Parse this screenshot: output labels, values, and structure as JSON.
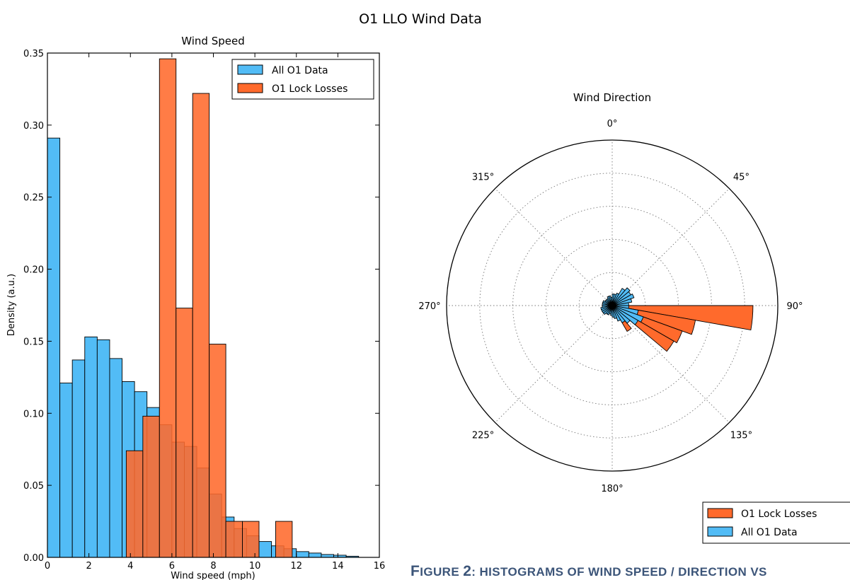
{
  "figure": {
    "suptitle": "O1 LLO Wind Data",
    "caption_first": "F",
    "caption_word": "IGURE",
    "caption_num": "2",
    "caption_rest": ": HISTOGRAMS OF WIND SPEED / DIRECTION VS"
  },
  "colors": {
    "all": "#52bcf6",
    "lock": "#ff6a2c"
  },
  "chart_data": [
    {
      "type": "bar",
      "title": "Wind Speed",
      "xlabel": "Wind speed (mph)",
      "ylabel": "Density (a.u.)",
      "xlim": [
        0,
        16
      ],
      "ylim": [
        0,
        0.35
      ],
      "xticks": [
        "0",
        "2",
        "4",
        "6",
        "8",
        "10",
        "12",
        "14",
        "16"
      ],
      "yticks": [
        "0.00",
        "0.05",
        "0.10",
        "0.15",
        "0.20",
        "0.25",
        "0.30",
        "0.35"
      ],
      "legend_position": "top-right",
      "series": [
        {
          "name": "All O1 Data",
          "color": "#52bcf6",
          "bin_start": 0,
          "bin_width": 0.6,
          "values": [
            0.291,
            0.121,
            0.137,
            0.153,
            0.151,
            0.138,
            0.122,
            0.115,
            0.104,
            0.092,
            0.08,
            0.077,
            0.062,
            0.044,
            0.028,
            0.02,
            0.015,
            0.011,
            0.008,
            0.006,
            0.004,
            0.003,
            0.002,
            0.0015,
            0.0008
          ]
        },
        {
          "name": "O1 Lock Losses",
          "color": "#ff6a2c",
          "bin_start": 3.8,
          "bin_width": 0.8,
          "values": [
            0.074,
            0.098,
            0.346,
            0.173,
            0.322,
            0.148,
            0.025,
            0.025,
            0.0,
            0.025
          ]
        }
      ]
    },
    {
      "type": "polar-bar",
      "title": "Wind Direction",
      "angle_labels": [
        "0°",
        "45°",
        "90°",
        "135°",
        "180°",
        "225°",
        "270°",
        "315°"
      ],
      "direction": "clockwise, 0° at top",
      "bin_width_deg": 10,
      "legend_position": "bottom-right",
      "series": [
        {
          "name": "O1 Lock Losses",
          "color": "#ff6a2c",
          "centers_deg": [
            95,
            105,
            115,
            125,
            135,
            145,
            155,
            165,
            175,
            185,
            195,
            205,
            215,
            225,
            235,
            245,
            255,
            265,
            275,
            285,
            295,
            305,
            315,
            325,
            335,
            345,
            355
          ],
          "values": [
            0.85,
            0.51,
            0.45,
            0.43,
            0.11,
            0.18,
            0.03,
            0.03,
            0.02,
            0.03,
            0.025,
            0.02,
            0.02,
            0.02,
            0.02,
            0.02,
            0.02,
            0.02,
            0.02,
            0.02,
            0.03,
            0.05,
            0.03,
            0.02,
            0.02,
            0.02,
            0.02
          ]
        },
        {
          "name": "All O1 Data",
          "color": "#52bcf6",
          "centers_deg": [
            5,
            15,
            25,
            35,
            45,
            55,
            65,
            75,
            85,
            95,
            105,
            115,
            125,
            135,
            145,
            155,
            165,
            175,
            185,
            195,
            205,
            215,
            225,
            235,
            245,
            255,
            265,
            275,
            285,
            295,
            305,
            315,
            325,
            335,
            345,
            355
          ],
          "values": [
            0.07,
            0.07,
            0.08,
            0.12,
            0.14,
            0.13,
            0.14,
            0.12,
            0.1,
            0.1,
            0.16,
            0.2,
            0.18,
            0.14,
            0.12,
            0.1,
            0.08,
            0.07,
            0.06,
            0.05,
            0.06,
            0.06,
            0.07,
            0.07,
            0.07,
            0.07,
            0.06,
            0.06,
            0.06,
            0.06,
            0.05,
            0.05,
            0.05,
            0.06,
            0.06,
            0.05
          ]
        }
      ]
    }
  ]
}
